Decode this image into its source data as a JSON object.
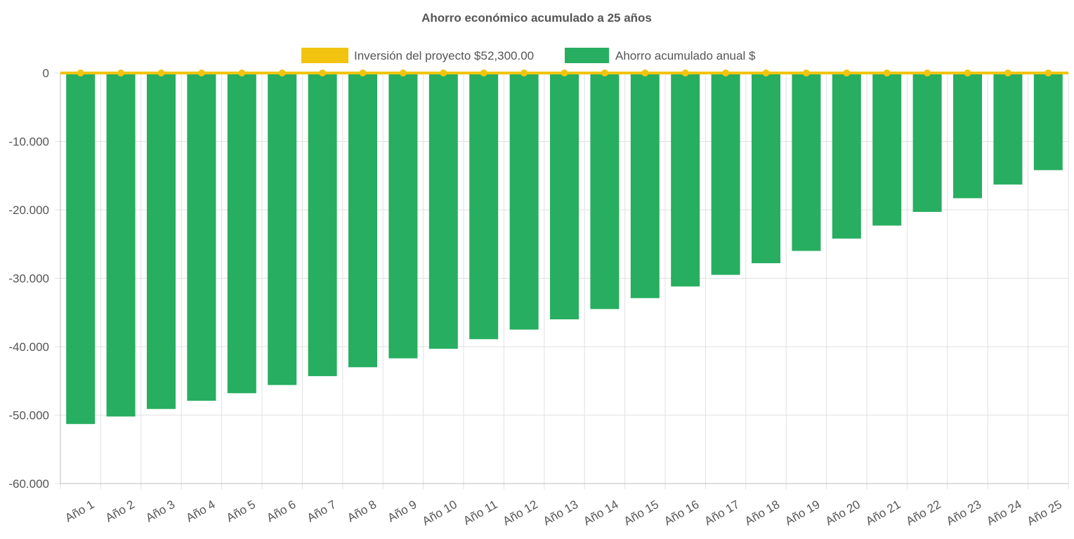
{
  "chart_data": {
    "type": "bar",
    "title": "Ahorro económico acumulado a 25 años",
    "categories": [
      "Año 1",
      "Año 2",
      "Año 3",
      "Año 4",
      "Año 5",
      "Año 6",
      "Año 7",
      "Año 8",
      "Año 9",
      "Año 10",
      "Año 11",
      "Año 12",
      "Año 13",
      "Año 14",
      "Año 15",
      "Año 16",
      "Año 17",
      "Año 18",
      "Año 19",
      "Año 20",
      "Año 21",
      "Año 22",
      "Año 23",
      "Año 24",
      "Año 25"
    ],
    "series": [
      {
        "name": "Inversión del proyecto $52,300.00",
        "type": "line",
        "color": "#f2c40f",
        "values": [
          0,
          0,
          0,
          0,
          0,
          0,
          0,
          0,
          0,
          0,
          0,
          0,
          0,
          0,
          0,
          0,
          0,
          0,
          0,
          0,
          0,
          0,
          0,
          0,
          0
        ]
      },
      {
        "name": "Ahorro acumulado anual $",
        "type": "bar",
        "color": "#27ae60",
        "values": [
          -51300,
          -50200,
          -49100,
          -47900,
          -46800,
          -45600,
          -44300,
          -43000,
          -41700,
          -40300,
          -38900,
          -37500,
          -36000,
          -34500,
          -32900,
          -31200,
          -29500,
          -27800,
          -26000,
          -24200,
          -22300,
          -20300,
          -18300,
          -16300,
          -14200
        ]
      }
    ],
    "ylim": [
      -60000,
      0
    ],
    "yticks": [
      0,
      -10000,
      -20000,
      -30000,
      -40000,
      -50000,
      -60000
    ],
    "ytick_labels": [
      "0",
      "-10.000",
      "-20.000",
      "-30.000",
      "-40.000",
      "-50.000",
      "-60.000"
    ],
    "grid": true,
    "legend": "top-center",
    "xlabel": "",
    "ylabel": ""
  }
}
